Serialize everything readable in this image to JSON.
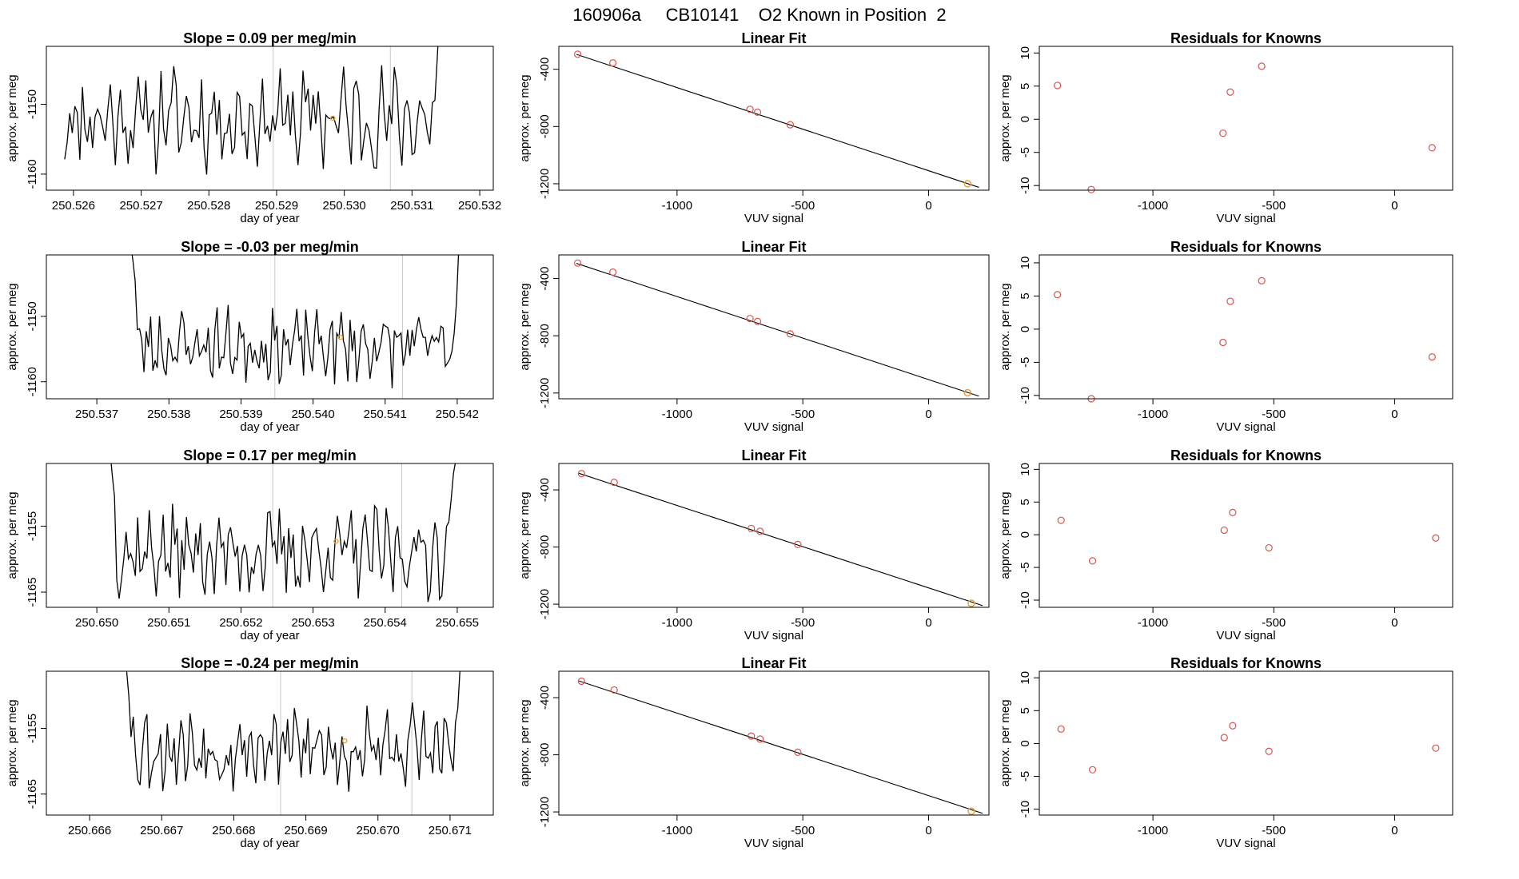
{
  "page_title": "160906a     CB10141    O2 Known in Position  2",
  "colors": {
    "trace": "#000000",
    "known_points": "#d9534f",
    "current_point": "#e8a33d",
    "frame": "#000000",
    "vline": "#c8c8c8",
    "background": "#ffffff"
  },
  "chart_data": [
    {
      "type": "line",
      "panel": "time-series",
      "row": 1,
      "title": "Slope =  0.09  per meg/min",
      "xlabel": "day of year",
      "ylabel": "approx. per meg",
      "xticks": [
        "250.526",
        "250.527",
        "250.528",
        "250.529",
        "250.530",
        "250.531",
        "250.532"
      ],
      "xtick_values": [
        250.526,
        250.527,
        250.528,
        250.529,
        250.53,
        250.531,
        250.532
      ],
      "yticks": [
        "-1160",
        "-1150"
      ],
      "ytick_values": [
        -1160,
        -1150
      ],
      "xlim": [
        250.5256,
        250.5322
      ],
      "ylim": [
        -1162.3,
        -1141.7
      ],
      "vlines": [
        250.52895,
        250.53068
      ],
      "trace_x_range": [
        250.52587,
        250.53145
      ],
      "highlight": {
        "x": 250.52983,
        "y": -1152.0
      },
      "seed": 11,
      "base": -1152,
      "amp": 5.5,
      "edge_left": [],
      "edge_right": [
        -1143,
        -1136,
        -1132
      ]
    },
    {
      "type": "scatter",
      "panel": "linear-fit",
      "row": 1,
      "title": "Linear Fit",
      "xlabel": "VUV signal",
      "ylabel": "approx. per meg",
      "xticks": [
        "-1000",
        "-500",
        "0"
      ],
      "xtick_values": [
        -1000,
        -500,
        0
      ],
      "yticks": [
        "-400",
        "-800",
        "-1200"
      ],
      "ytick_values": [
        -400,
        -800,
        -1200
      ],
      "xlim": [
        -1470,
        240
      ],
      "ylim": [
        -1245,
        -240
      ],
      "x": [
        -1395,
        -1255,
        -710,
        -680,
        -550,
        155
      ],
      "y": [
        -295,
        -356,
        -680,
        -700,
        -788,
        -1200
      ],
      "current": {
        "x": 155,
        "y": -1200
      },
      "fit_line": {
        "x": [
          -1400,
          200
        ],
        "y": [
          -296,
          -1225
        ]
      }
    },
    {
      "type": "scatter",
      "panel": "residuals",
      "row": 1,
      "title": "Residuals for Knowns",
      "xlabel": "VUV signal",
      "ylabel": "approx. per meg",
      "xticks": [
        "-1000",
        "-500",
        "0"
      ],
      "xtick_values": [
        -1000,
        -500,
        0
      ],
      "yticks": [
        "-10",
        "-5",
        "0",
        "5",
        "10"
      ],
      "ytick_values": [
        -10,
        -5,
        0,
        5,
        10
      ],
      "xlim": [
        -1470,
        240
      ],
      "ylim": [
        -10.7,
        11
      ],
      "x": [
        -1395,
        -1255,
        -710,
        -680,
        -550,
        155
      ],
      "y": [
        5.1,
        -10.6,
        -2.1,
        4.1,
        8.0,
        -4.3
      ]
    },
    {
      "type": "line",
      "panel": "time-series",
      "row": 2,
      "title": "Slope =  -0.03  per meg/min",
      "xlabel": "day of year",
      "ylabel": "approx. per meg",
      "xticks": [
        "250.537",
        "250.538",
        "250.539",
        "250.540",
        "250.541",
        "250.542"
      ],
      "xtick_values": [
        250.537,
        250.538,
        250.539,
        250.54,
        250.541,
        250.542
      ],
      "yticks": [
        "-1160",
        "-1150"
      ],
      "ytick_values": [
        -1160,
        -1150
      ],
      "xlim": [
        250.5363,
        250.5425
      ],
      "ylim": [
        -1162.6,
        -1140.6
      ],
      "vlines": [
        250.53947,
        250.54124
      ],
      "trace_x_range": [
        250.53747,
        250.54205
      ],
      "highlight": {
        "x": 250.54038,
        "y": -1153.2
      },
      "seed": 23,
      "base": -1154.5,
      "amp": 4.2,
      "edge_left": [
        -1139,
        -1141.5,
        -1144.5
      ],
      "edge_right": [
        -1148,
        -1140,
        -1134
      ]
    },
    {
      "type": "scatter",
      "panel": "linear-fit",
      "row": 2,
      "title": "Linear Fit",
      "xlabel": "VUV signal",
      "ylabel": "approx. per meg",
      "xticks": [
        "-1000",
        "-500",
        "0"
      ],
      "xtick_values": [
        -1000,
        -500,
        0
      ],
      "yticks": [
        "-400",
        "-800",
        "-1200"
      ],
      "ytick_values": [
        -400,
        -800,
        -1200
      ],
      "xlim": [
        -1470,
        240
      ],
      "ylim": [
        -1240,
        -235
      ],
      "x": [
        -1395,
        -1255,
        -710,
        -680,
        -550,
        155
      ],
      "y": [
        -292,
        -355,
        -680,
        -700,
        -787,
        -1198
      ],
      "current": {
        "x": 155,
        "y": -1198
      },
      "fit_line": {
        "x": [
          -1400,
          200
        ],
        "y": [
          -294,
          -1222
        ]
      }
    },
    {
      "type": "scatter",
      "panel": "residuals",
      "row": 2,
      "title": "Residuals for Knowns",
      "xlabel": "VUV signal",
      "ylabel": "approx. per meg",
      "xticks": [
        "-1000",
        "-500",
        "0"
      ],
      "xtick_values": [
        -1000,
        -500,
        0
      ],
      "yticks": [
        "-10",
        "-5",
        "0",
        "5",
        "10"
      ],
      "ytick_values": [
        -10,
        -5,
        0,
        5,
        10
      ],
      "xlim": [
        -1470,
        240
      ],
      "ylim": [
        -10.5,
        11.2
      ],
      "x": [
        -1395,
        -1255,
        -710,
        -680,
        -550,
        155
      ],
      "y": [
        5.2,
        -10.5,
        -2.0,
        4.2,
        7.3,
        -4.2
      ]
    },
    {
      "type": "line",
      "panel": "time-series",
      "row": 3,
      "title": "Slope =  0.17  per meg/min",
      "xlabel": "day of year",
      "ylabel": "approx. per meg",
      "xticks": [
        "250.650",
        "250.651",
        "250.652",
        "250.653",
        "250.654",
        "250.655"
      ],
      "xtick_values": [
        250.65,
        250.651,
        250.652,
        250.653,
        250.654,
        250.655
      ],
      "yticks": [
        "-1165",
        "-1155"
      ],
      "ytick_values": [
        -1165,
        -1155
      ],
      "xlim": [
        250.6493,
        250.6555
      ],
      "ylim": [
        -1167.3,
        -1145.5
      ],
      "vlines": [
        250.65244,
        250.65423
      ],
      "trace_x_range": [
        250.65018,
        250.65498
      ],
      "highlight": {
        "x": 250.65332,
        "y": -1157.3
      },
      "seed": 37,
      "base": -1159,
      "amp": 5.0,
      "edge_left": [
        -1143,
        -1147,
        -1150.5
      ],
      "edge_right": [
        -1151,
        -1147,
        -1145
      ]
    },
    {
      "type": "scatter",
      "panel": "linear-fit",
      "row": 3,
      "title": "Linear Fit",
      "xlabel": "VUV signal",
      "ylabel": "approx. per meg",
      "xticks": [
        "-1000",
        "-500",
        "0"
      ],
      "xtick_values": [
        -1000,
        -500,
        0
      ],
      "yticks": [
        "-400",
        "-800",
        "-1200"
      ],
      "ytick_values": [
        -400,
        -800,
        -1200
      ],
      "xlim": [
        -1470,
        240
      ],
      "ylim": [
        -1222,
        -215
      ],
      "x": [
        -1380,
        -1250,
        -705,
        -670,
        -520,
        170
      ],
      "y": [
        -286,
        -347,
        -670,
        -690,
        -782,
        -1194
      ],
      "current": {
        "x": 170,
        "y": -1194
      },
      "fit_line": {
        "x": [
          -1390,
          215
        ],
        "y": [
          -284,
          -1210
        ]
      }
    },
    {
      "type": "scatter",
      "panel": "residuals",
      "row": 3,
      "title": "Residuals for Knowns",
      "xlabel": "VUV signal",
      "ylabel": "approx. per meg",
      "xticks": [
        "-1000",
        "-500",
        "0"
      ],
      "xtick_values": [
        -1000,
        -500,
        0
      ],
      "yticks": [
        "-10",
        "-5",
        "0",
        "5",
        "10"
      ],
      "ytick_values": [
        -10,
        -5,
        0,
        5,
        10
      ],
      "xlim": [
        -1470,
        240
      ],
      "ylim": [
        -11.1,
        10.9
      ],
      "x": [
        -1380,
        -1250,
        -705,
        -670,
        -520,
        170
      ],
      "y": [
        2.2,
        -4.0,
        0.7,
        3.4,
        -2.0,
        -0.5
      ]
    },
    {
      "type": "line",
      "panel": "time-series",
      "row": 4,
      "title": "Slope =  -0.24  per meg/min",
      "xlabel": "day of year",
      "ylabel": "approx. per meg",
      "xticks": [
        "250.666",
        "250.667",
        "250.668",
        "250.669",
        "250.670",
        "250.671"
      ],
      "xtick_values": [
        250.666,
        250.667,
        250.668,
        250.669,
        250.67,
        250.671
      ],
      "yticks": [
        "-1165",
        "-1155"
      ],
      "ytick_values": [
        -1165,
        -1155
      ],
      "xlim": [
        250.6654,
        250.6716
      ],
      "ylim": [
        -1168.2,
        -1146.3
      ],
      "vlines": [
        250.66865,
        250.67047
      ],
      "trace_x_range": [
        250.66648,
        250.67117
      ],
      "highlight": {
        "x": 250.66954,
        "y": -1156.9
      },
      "seed": 53,
      "base": -1158,
      "amp": 5.0,
      "edge_left": [
        -1142,
        -1146,
        -1150
      ],
      "edge_right": [
        -1152,
        -1146,
        -1140
      ]
    },
    {
      "type": "scatter",
      "panel": "linear-fit",
      "row": 4,
      "title": "Linear Fit",
      "xlabel": "VUV signal",
      "ylabel": "approx. per meg",
      "xticks": [
        "-1000",
        "-500",
        "0"
      ],
      "xtick_values": [
        -1000,
        -500,
        0
      ],
      "yticks": [
        "-400",
        "-800",
        "-1200"
      ],
      "ytick_values": [
        -400,
        -800,
        -1200
      ],
      "xlim": [
        -1470,
        240
      ],
      "ylim": [
        -1222,
        -215
      ],
      "x": [
        -1380,
        -1250,
        -705,
        -670,
        -520,
        170
      ],
      "y": [
        -285,
        -346,
        -669,
        -690,
        -782,
        -1195
      ],
      "current": {
        "x": 170,
        "y": -1195
      },
      "fit_line": {
        "x": [
          -1390,
          215
        ],
        "y": [
          -283,
          -1210
        ]
      }
    },
    {
      "type": "scatter",
      "panel": "residuals",
      "row": 4,
      "title": "Residuals for Knowns",
      "xlabel": "VUV signal",
      "ylabel": "approx. per meg",
      "xticks": [
        "-1000",
        "-500",
        "0"
      ],
      "xtick_values": [
        -1000,
        -500,
        0
      ],
      "yticks": [
        "-10",
        "-5",
        "0",
        "5",
        "10"
      ],
      "ytick_values": [
        -10,
        -5,
        0,
        5,
        10
      ],
      "xlim": [
        -1470,
        240
      ],
      "ylim": [
        -10.9,
        11.0
      ],
      "x": [
        -1380,
        -1250,
        -705,
        -670,
        -520,
        170
      ],
      "y": [
        2.2,
        -4.0,
        0.9,
        2.7,
        -1.2,
        -0.7
      ]
    }
  ]
}
